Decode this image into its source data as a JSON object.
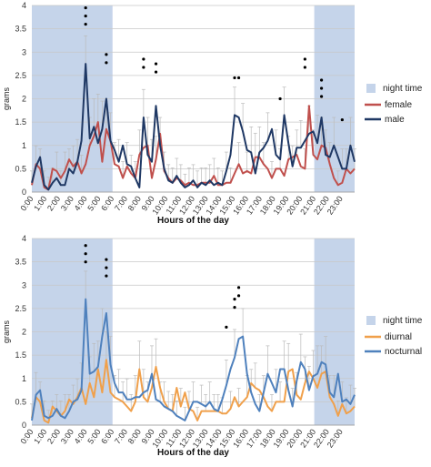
{
  "chart_data": [
    {
      "type": "line",
      "ylabel": "grams",
      "xlabel": "Hours of the day",
      "ylim": [
        0,
        4
      ],
      "yticks": [
        "0",
        "0.5",
        "1",
        "1.5",
        "2",
        "2.5",
        "3",
        "3.5",
        "4"
      ],
      "xtick_labels": [
        "0:00",
        "1:00",
        "2:00",
        "3:00",
        "4:00",
        "5:00",
        "6:00",
        "7:00",
        "8:00",
        "9:00",
        "10:00",
        "11:00",
        "12:00",
        "13:00",
        "14:00",
        "15:00",
        "16:00",
        "17:00",
        "18:00",
        "19:00",
        "20:00",
        "21:00",
        "22:00",
        "23:00"
      ],
      "grid": true,
      "legend_position": "right",
      "shading": {
        "name": "night time",
        "color": "#c5d4ea",
        "ranges": [
          [
            0,
            6
          ],
          [
            21,
            24
          ]
        ]
      },
      "series": [
        {
          "name": "female",
          "color": "#c0504d",
          "values": [
            0.15,
            0.6,
            0.5,
            0.1,
            0.05,
            0.5,
            0.45,
            0.3,
            0.45,
            0.7,
            0.55,
            0.65,
            0.4,
            0.6,
            1.0,
            1.2,
            1.5,
            0.65,
            1.35,
            1.1,
            0.6,
            0.55,
            0.3,
            0.55,
            0.4,
            0.3,
            0.8,
            0.95,
            1.0,
            0.3,
            0.7,
            1.25,
            0.45,
            0.3,
            0.2,
            0.3,
            0.25,
            0.15,
            0.2,
            0.15,
            0.15,
            0.2,
            0.2,
            0.2,
            0.35,
            0.15,
            0.15,
            0.2,
            0.2,
            0.4,
            0.6,
            0.4,
            0.45,
            0.4,
            0.75,
            0.75,
            0.6,
            0.5,
            0.3,
            0.5,
            0.5,
            0.35,
            0.7,
            0.75,
            0.8,
            0.55,
            0.5,
            1.85,
            0.8,
            0.7,
            1.0,
            0.95,
            0.6,
            0.3,
            0.15,
            0.2,
            0.5,
            0.4,
            0.5
          ]
        },
        {
          "name": "male",
          "color": "#1f3864",
          "values": [
            0.2,
            0.55,
            0.75,
            0.15,
            0.05,
            0.2,
            0.3,
            0.15,
            0.15,
            0.5,
            0.4,
            0.65,
            1.1,
            2.75,
            1.15,
            1.4,
            1.05,
            1.35,
            2.0,
            1.1,
            0.9,
            0.65,
            1.0,
            0.6,
            0.55,
            0.3,
            0.1,
            1.6,
            0.8,
            0.65,
            1.85,
            1.0,
            0.5,
            0.25,
            0.2,
            0.35,
            0.2,
            0.1,
            0.15,
            0.25,
            0.1,
            0.2,
            0.15,
            0.25,
            0.15,
            0.2,
            0.15,
            0.45,
            0.8,
            1.65,
            1.6,
            1.3,
            0.9,
            0.85,
            0.4,
            0.85,
            0.95,
            1.1,
            1.35,
            0.8,
            0.7,
            1.65,
            1.05,
            0.55,
            0.95,
            0.95,
            1.1,
            1.25,
            1.3,
            1.05,
            1.6,
            0.8,
            0.75,
            1.0,
            0.75,
            0.5,
            0.5,
            1.0,
            0.65
          ]
        }
      ],
      "significance": [
        {
          "x": 13,
          "y": 3.95,
          "marks": 3
        },
        {
          "x": 18,
          "y": 2.95,
          "marks": 2
        },
        {
          "x": 27,
          "y": 2.85,
          "marks": 2
        },
        {
          "x": 30,
          "y": 2.75,
          "marks": 2
        },
        {
          "x": 49,
          "y": 2.45,
          "marks": 1
        },
        {
          "x": 50,
          "y": 2.45,
          "marks": 1
        },
        {
          "x": 60,
          "y": 2.0,
          "marks": 1
        },
        {
          "x": 66,
          "y": 2.85,
          "marks": 2
        },
        {
          "x": 70,
          "y": 2.4,
          "marks": 3
        },
        {
          "x": 75,
          "y": 1.55,
          "marks": 1
        }
      ]
    },
    {
      "type": "line",
      "ylabel": "grams",
      "xlabel": "Hours of the day",
      "ylim": [
        0,
        4
      ],
      "yticks": [
        "0",
        "0.5",
        "1",
        "1.5",
        "2",
        "2.5",
        "3",
        "3.5",
        "4"
      ],
      "xtick_labels": [
        "0:00",
        "1:00",
        "2:00",
        "3:00",
        "4:00",
        "5:00",
        "6:00",
        "7:00",
        "8:00",
        "9:00",
        "10:00",
        "11:00",
        "12:00",
        "13:00",
        "14:00",
        "15:00",
        "16:00",
        "17:00",
        "18:00",
        "19:00",
        "20:00",
        "21:00",
        "22:00",
        "23:00"
      ],
      "grid": true,
      "legend_position": "right",
      "shading": {
        "name": "night time",
        "color": "#c5d4ea",
        "ranges": [
          [
            0,
            6
          ],
          [
            21,
            24
          ]
        ]
      },
      "series": [
        {
          "name": "diurnal",
          "color": "#f0a04b",
          "values": [
            0.15,
            0.6,
            0.5,
            0.1,
            0.05,
            0.4,
            0.3,
            0.2,
            0.3,
            0.55,
            0.45,
            0.6,
            0.8,
            0.45,
            0.9,
            0.6,
            1.2,
            0.7,
            1.4,
            0.7,
            0.6,
            0.55,
            0.5,
            0.4,
            0.3,
            0.5,
            1.2,
            0.6,
            0.5,
            0.8,
            1.25,
            0.8,
            0.5,
            0.35,
            0.3,
            0.8,
            0.4,
            0.7,
            0.35,
            0.3,
            0.1,
            0.3,
            0.3,
            0.3,
            0.3,
            0.3,
            0.25,
            0.25,
            0.35,
            0.6,
            0.4,
            0.5,
            0.6,
            0.9,
            0.8,
            0.75,
            0.6,
            0.4,
            0.3,
            0.5,
            0.5,
            0.5,
            1.15,
            1.2,
            0.65,
            0.55,
            0.9,
            1.15,
            1.0,
            0.8,
            1.1,
            1.15,
            0.6,
            0.45,
            0.2,
            0.45,
            0.25,
            0.3,
            0.4
          ]
        },
        {
          "name": "nocturnal",
          "color": "#4f81bd",
          "values": [
            0.1,
            0.65,
            0.75,
            0.2,
            0.15,
            0.2,
            0.35,
            0.2,
            0.15,
            0.3,
            0.5,
            0.55,
            0.75,
            2.7,
            1.1,
            1.15,
            1.25,
            1.9,
            2.4,
            1.3,
            0.9,
            0.7,
            0.7,
            0.55,
            0.55,
            0.6,
            0.6,
            0.7,
            0.75,
            1.1,
            0.55,
            0.5,
            0.4,
            0.35,
            0.3,
            0.2,
            0.15,
            0.1,
            0.3,
            0.5,
            0.5,
            0.45,
            0.4,
            0.5,
            0.35,
            0.3,
            0.55,
            0.85,
            1.2,
            1.45,
            1.85,
            1.9,
            1.1,
            0.7,
            0.45,
            0.3,
            0.7,
            1.1,
            0.9,
            0.7,
            1.2,
            1.2,
            0.75,
            0.4,
            0.95,
            1.35,
            1.2,
            0.75,
            1.05,
            1.1,
            1.35,
            1.3,
            0.7,
            0.6,
            1.1,
            0.5,
            0.55,
            0.45,
            0.65
          ]
        }
      ],
      "significance": [
        {
          "x": 13,
          "y": 3.85,
          "marks": 3
        },
        {
          "x": 18,
          "y": 3.55,
          "marks": 3
        },
        {
          "x": 47,
          "y": 2.1,
          "marks": 1
        },
        {
          "x": 49,
          "y": 2.7,
          "marks": 2
        },
        {
          "x": 50,
          "y": 2.95,
          "marks": 2
        }
      ]
    }
  ]
}
